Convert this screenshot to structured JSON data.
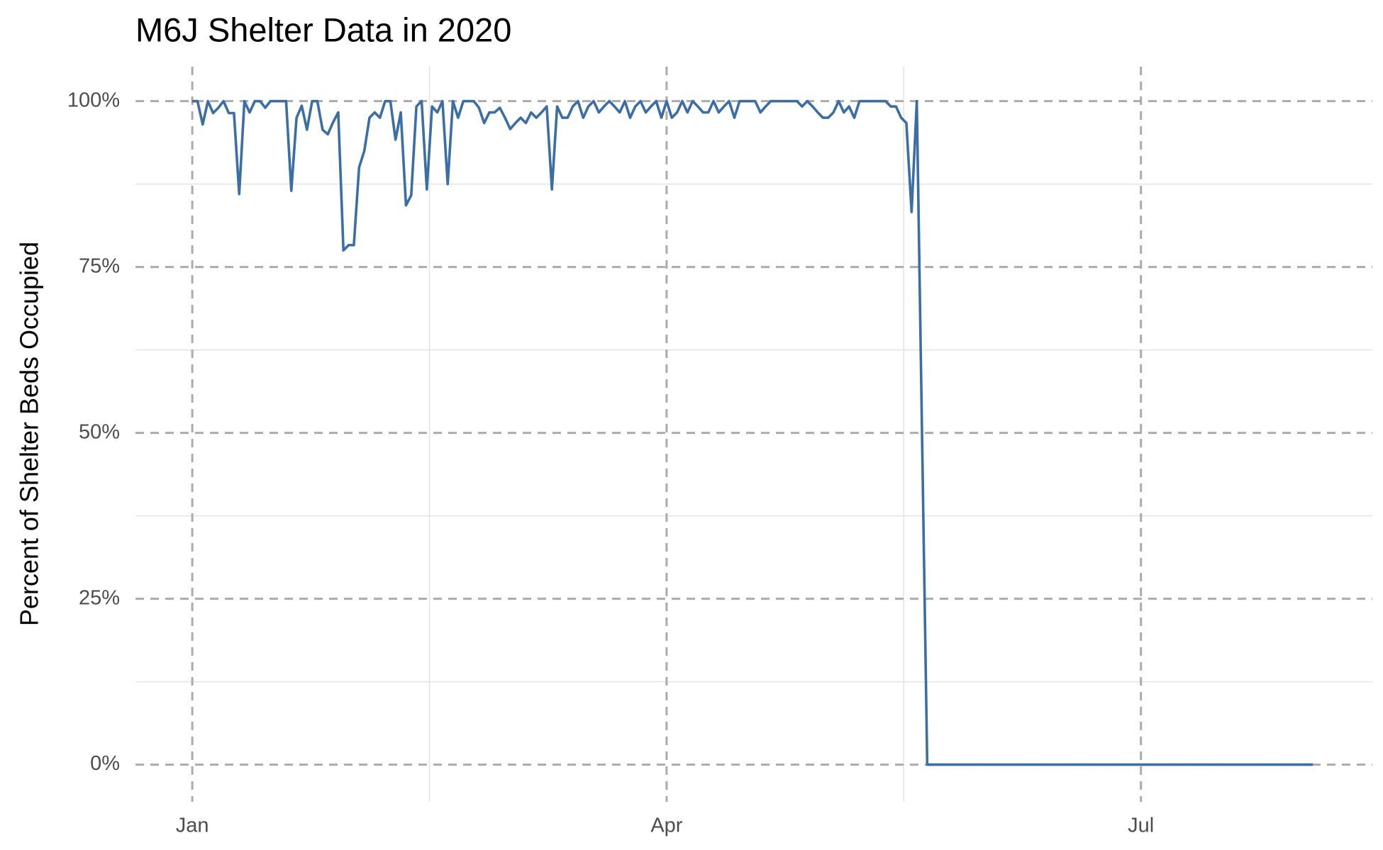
{
  "chart_data": {
    "type": "line",
    "title": "M6J Shelter Data in 2020",
    "y_label": "Percent of Shelter Beds Occupied",
    "color": "#3b6ea5",
    "grid": true,
    "x": [
      0,
      1,
      2,
      3,
      4,
      5,
      6,
      7,
      8,
      9,
      10,
      11,
      12,
      13,
      14,
      15,
      16,
      17,
      18,
      19,
      20,
      21,
      22,
      23,
      24,
      25,
      26,
      27,
      28,
      29,
      30,
      31,
      32,
      33,
      34,
      35,
      36,
      37,
      38,
      39,
      40,
      41,
      42,
      43,
      44,
      45,
      46,
      47,
      48,
      49,
      50,
      51,
      52,
      53,
      54,
      55,
      56,
      57,
      58,
      59,
      60,
      61,
      62,
      63,
      64,
      65,
      66,
      67,
      68,
      69,
      70,
      71,
      72,
      73,
      74,
      75,
      76,
      77,
      78,
      79,
      80,
      81,
      82,
      83,
      84,
      85,
      86,
      87,
      88,
      89,
      90,
      91,
      92,
      93,
      94,
      95,
      96,
      97,
      98,
      99,
      100,
      101,
      102,
      103,
      104,
      105,
      106,
      107,
      108,
      109,
      110,
      111,
      112,
      113,
      114,
      115,
      116,
      117,
      118,
      119,
      120,
      121,
      122,
      123,
      124,
      125,
      126,
      127,
      128,
      129,
      130,
      131,
      132,
      133,
      134,
      135,
      136,
      137,
      138,
      139,
      141,
      142,
      143,
      144,
      145,
      146,
      147,
      148,
      149,
      150,
      151,
      152,
      153,
      154,
      155,
      156,
      157,
      158,
      159,
      160,
      161,
      162,
      163,
      164,
      165,
      166,
      167,
      168,
      169,
      170,
      171,
      172,
      173,
      174,
      175,
      176,
      177,
      178,
      179,
      180,
      181,
      182,
      183,
      184,
      185,
      186,
      187,
      188,
      189,
      190,
      191,
      192,
      193,
      194,
      195,
      196,
      197,
      198,
      199,
      200,
      201,
      202,
      203,
      204,
      205,
      206,
      207,
      208,
      209,
      210,
      211,
      212,
      213,
      214,
      215
    ],
    "values": [
      100,
      100,
      96.5,
      100,
      98.2,
      99,
      100,
      98.2,
      98.2,
      86,
      100,
      98.3,
      100,
      100,
      99,
      100,
      100,
      100,
      100,
      86.5,
      97.5,
      99.3,
      95.7,
      100,
      100,
      95.7,
      95,
      96.8,
      98.3,
      77.5,
      78.3,
      78.3,
      90,
      92.5,
      97.5,
      98.3,
      97.5,
      100,
      100,
      94.2,
      98.3,
      84.3,
      85.8,
      99.2,
      100,
      86.7,
      99.2,
      98.3,
      100,
      87.5,
      100,
      97.5,
      100,
      100,
      100,
      99,
      96.7,
      98.3,
      98.3,
      99,
      97.5,
      95.8,
      96.7,
      97.5,
      96.7,
      98.3,
      97.5,
      98.3,
      99.2,
      86.7,
      99.2,
      97.5,
      97.5,
      99.2,
      100,
      97.5,
      99.2,
      100,
      98.3,
      99.2,
      100,
      99.2,
      98.3,
      100,
      97.5,
      99.2,
      100,
      98.3,
      99.2,
      100,
      97.5,
      100,
      97.5,
      98.3,
      100,
      98.3,
      100,
      99.2,
      98.3,
      98.3,
      100,
      98.3,
      99.2,
      100,
      97.5,
      100,
      100,
      100,
      100,
      98.3,
      99.2,
      100,
      100,
      100,
      100,
      100,
      100,
      99.2,
      100,
      99.2,
      98.3,
      97.5,
      97.5,
      98.3,
      100,
      98.3,
      99.2,
      97.5,
      100,
      100,
      100,
      100,
      100,
      100,
      99.2,
      99.2,
      97.5,
      96.7,
      83.3,
      100,
      0,
      0,
      0,
      0,
      0,
      0,
      0,
      0,
      0,
      0,
      0,
      0,
      0,
      0,
      0,
      0,
      0,
      0,
      0,
      0,
      0,
      0,
      0,
      0,
      0,
      0,
      0,
      0,
      0,
      0,
      0,
      0,
      0,
      0,
      0,
      0,
      0,
      0,
      0,
      0,
      0,
      0,
      0,
      0,
      0,
      0,
      0,
      0,
      0,
      0,
      0,
      0,
      0,
      0,
      0,
      0,
      0,
      0,
      0,
      0,
      0,
      0,
      0,
      0,
      0,
      0,
      0,
      0,
      0,
      0,
      0,
      0,
      0,
      0,
      0
    ],
    "xlim": [
      -10.9,
      226.4
    ],
    "xticks": [
      {
        "value": 0,
        "label": "Jan"
      },
      {
        "value": 91,
        "label": "Apr"
      },
      {
        "value": 182,
        "label": "Jul"
      }
    ],
    "ylim": [
      -5.6,
      105.2
    ],
    "yticks": [
      {
        "value": 0,
        "label": "0%"
      },
      {
        "value": 25,
        "label": "25%"
      },
      {
        "value": 50,
        "label": "50%"
      },
      {
        "value": 75,
        "label": "75%"
      },
      {
        "value": 100,
        "label": "100%"
      }
    ]
  }
}
